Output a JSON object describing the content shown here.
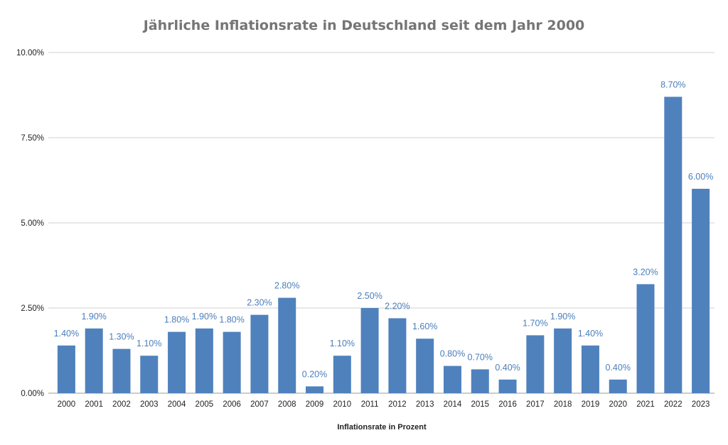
{
  "chart_data": {
    "type": "bar",
    "title": "Jährliche Inflationsrate in Deutschland seit dem Jahr 2000",
    "xlabel": "Inflationsrate in Prozent",
    "ylabel": "",
    "ylim": [
      0,
      10
    ],
    "yticks": [
      "0.00%",
      "2.50%",
      "5.00%",
      "7.50%",
      "10.00%"
    ],
    "ytick_values": [
      0,
      2.5,
      5,
      7.5,
      10
    ],
    "grid": true,
    "bar_color": "#4f81bd",
    "label_color": "#4a7ebb",
    "categories": [
      "2000",
      "2001",
      "2002",
      "2003",
      "2004",
      "2005",
      "2006",
      "2007",
      "2008",
      "2009",
      "2010",
      "2011",
      "2012",
      "2013",
      "2014",
      "2015",
      "2016",
      "2017",
      "2018",
      "2019",
      "2020",
      "2021",
      "2022",
      "2023"
    ],
    "values": [
      1.4,
      1.9,
      1.3,
      1.1,
      1.8,
      1.9,
      1.8,
      2.3,
      2.8,
      0.2,
      1.1,
      2.5,
      2.2,
      1.6,
      0.8,
      0.7,
      0.4,
      1.7,
      1.9,
      1.4,
      0.4,
      3.2,
      8.7,
      6.0
    ],
    "data_labels": [
      "1.40%",
      "1.90%",
      "1.30%",
      "1.10%",
      "1.80%",
      "1.90%",
      "1.80%",
      "2.30%",
      "2.80%",
      "0.20%",
      "1.10%",
      "2.50%",
      "2.20%",
      "1.60%",
      "0.80%",
      "0.70%",
      "0.40%",
      "1.70%",
      "1.90%",
      "1.40%",
      "0.40%",
      "3.20%",
      "8.70%",
      "6.00%"
    ]
  }
}
